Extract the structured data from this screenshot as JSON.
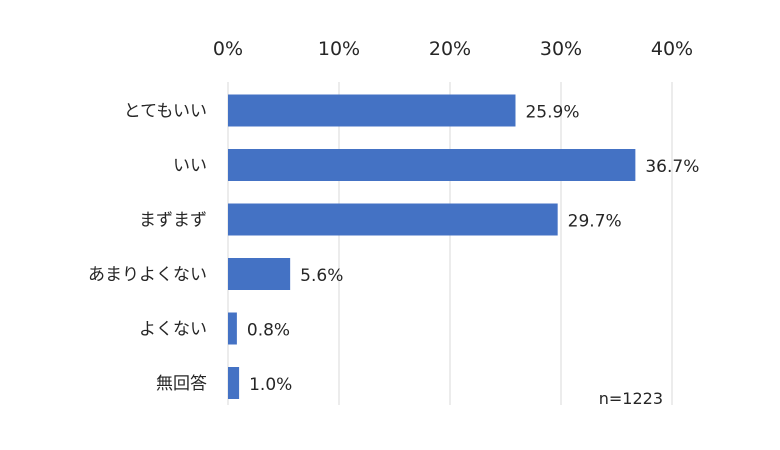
{
  "chart_data": {
    "type": "bar",
    "orientation": "horizontal",
    "categories": [
      "とてもいい",
      "いい",
      "まずまず",
      "あまりよくない",
      "よくない",
      "無回答"
    ],
    "values": [
      25.9,
      36.7,
      29.7,
      5.6,
      0.8,
      1.0
    ],
    "data_labels": [
      "25.9%",
      "36.7%",
      "29.7%",
      "5.6%",
      "0.8%",
      "1.0%"
    ],
    "xticks": [
      "0%",
      "10%",
      "20%",
      "30%",
      "40%"
    ],
    "xlim": [
      0,
      40
    ],
    "x_axis_position": "top",
    "grid": true,
    "bar_color": "#4472C4",
    "grid_color": "#D9D9D9",
    "note": "n=1223"
  }
}
